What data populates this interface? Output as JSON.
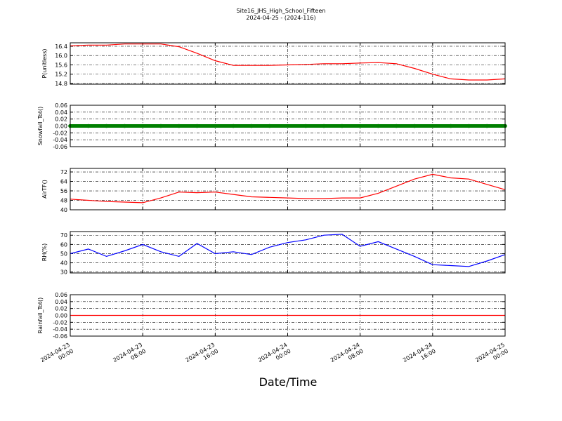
{
  "chart_data": [
    {
      "type": "line",
      "title": "Site16_JHS_High_School_Fifteen",
      "subtitle": "2024-04-25 - (2024-116)",
      "ylabel": "P(unitless)",
      "color": "#ff0000",
      "grid": true,
      "x": [
        "2024-04-23 00:00",
        "2024-04-23 02:00",
        "2024-04-23 04:00",
        "2024-04-23 06:00",
        "2024-04-23 08:00",
        "2024-04-23 10:00",
        "2024-04-23 12:00",
        "2024-04-23 14:00",
        "2024-04-23 16:00",
        "2024-04-23 18:00",
        "2024-04-23 20:00",
        "2024-04-23 22:00",
        "2024-04-24 00:00",
        "2024-04-24 02:00",
        "2024-04-24 04:00",
        "2024-04-24 06:00",
        "2024-04-24 08:00",
        "2024-04-24 10:00",
        "2024-04-24 12:00",
        "2024-04-24 14:00",
        "2024-04-24 16:00",
        "2024-04-24 18:00",
        "2024-04-24 20:00",
        "2024-04-24 22:00",
        "2024-04-25 00:00"
      ],
      "values": [
        16.42,
        16.45,
        16.45,
        16.5,
        16.5,
        16.5,
        16.38,
        16.1,
        15.78,
        15.58,
        15.58,
        15.58,
        15.6,
        15.62,
        15.65,
        15.65,
        15.68,
        15.7,
        15.65,
        15.45,
        15.2,
        15.0,
        14.95,
        14.95,
        15.0
      ],
      "ylim": [
        14.77,
        16.55
      ],
      "yticks": [
        14.8,
        15.2,
        15.6,
        {
          "value": 16.0,
          "label": "16.0"
        },
        16.4
      ]
    },
    {
      "type": "scatter",
      "ylabel": "Snowfall_Tot()",
      "color": "#008000",
      "grid": true,
      "x": [
        "2024-04-23 00:00",
        "2024-04-23 02:00",
        "2024-04-23 04:00",
        "2024-04-23 06:00",
        "2024-04-23 08:00",
        "2024-04-23 10:00",
        "2024-04-23 12:00",
        "2024-04-23 14:00",
        "2024-04-23 16:00",
        "2024-04-23 18:00",
        "2024-04-23 20:00",
        "2024-04-23 22:00",
        "2024-04-24 00:00",
        "2024-04-24 02:00",
        "2024-04-24 04:00",
        "2024-04-24 06:00",
        "2024-04-24 08:00",
        "2024-04-24 10:00",
        "2024-04-24 12:00",
        "2024-04-24 14:00",
        "2024-04-24 16:00",
        "2024-04-24 18:00",
        "2024-04-24 20:00",
        "2024-04-24 22:00",
        "2024-04-25 00:00"
      ],
      "values": [
        0,
        0,
        0,
        0,
        0,
        0,
        0,
        0,
        0,
        0,
        0,
        0,
        0,
        0,
        0,
        0,
        0,
        0,
        0,
        0,
        0,
        0,
        0,
        0,
        0
      ],
      "ylim": [
        -0.06,
        0.06
      ],
      "yticks": [
        -0.06,
        -0.04,
        -0.02,
        {
          "value": 0,
          "label": "0.00"
        },
        0.02,
        0.04,
        0.06
      ]
    },
    {
      "type": "line",
      "ylabel": "AirTF()",
      "color": "#ff0000",
      "grid": true,
      "x": [
        "2024-04-23 00:00",
        "2024-04-23 02:00",
        "2024-04-23 04:00",
        "2024-04-23 06:00",
        "2024-04-23 08:00",
        "2024-04-23 10:00",
        "2024-04-23 12:00",
        "2024-04-23 14:00",
        "2024-04-23 16:00",
        "2024-04-23 18:00",
        "2024-04-23 20:00",
        "2024-04-23 22:00",
        "2024-04-24 00:00",
        "2024-04-24 02:00",
        "2024-04-24 04:00",
        "2024-04-24 06:00",
        "2024-04-24 08:00",
        "2024-04-24 10:00",
        "2024-04-24 12:00",
        "2024-04-24 14:00",
        "2024-04-24 16:00",
        "2024-04-24 18:00",
        "2024-04-24 20:00",
        "2024-04-24 22:00",
        "2024-04-25 00:00"
      ],
      "values": [
        49,
        48,
        47,
        46.5,
        46,
        50,
        55,
        54.5,
        55,
        53,
        51,
        50.5,
        50,
        49.5,
        49.5,
        50,
        50,
        54,
        60,
        66,
        70,
        67,
        66,
        61.5,
        57
      ],
      "ylim": [
        40,
        75
      ],
      "yticks": [
        40,
        48,
        56,
        64,
        72
      ]
    },
    {
      "type": "line",
      "ylabel": "RH(%)",
      "color": "#0000ff",
      "grid": true,
      "x": [
        "2024-04-23 00:00",
        "2024-04-23 02:00",
        "2024-04-23 04:00",
        "2024-04-23 06:00",
        "2024-04-23 08:00",
        "2024-04-23 10:00",
        "2024-04-23 12:00",
        "2024-04-23 14:00",
        "2024-04-23 16:00",
        "2024-04-23 18:00",
        "2024-04-23 20:00",
        "2024-04-23 22:00",
        "2024-04-24 00:00",
        "2024-04-24 02:00",
        "2024-04-24 04:00",
        "2024-04-24 06:00",
        "2024-04-24 08:00",
        "2024-04-24 10:00",
        "2024-04-24 12:00",
        "2024-04-24 14:00",
        "2024-04-24 16:00",
        "2024-04-24 18:00",
        "2024-04-24 20:00",
        "2024-04-24 22:00",
        "2024-04-25 00:00"
      ],
      "values": [
        50,
        55,
        47,
        53,
        60,
        52,
        47,
        61,
        50,
        52,
        49,
        57,
        62,
        65,
        70,
        71,
        58,
        63,
        55,
        47,
        38,
        37,
        36,
        42,
        49
      ],
      "ylim": [
        29,
        74
      ],
      "yticks": [
        30,
        40,
        50,
        60,
        70
      ]
    },
    {
      "type": "line",
      "ylabel": "Rainfall_Tot()",
      "xlabel": "Date/Time",
      "color": "#ff0000",
      "grid": true,
      "x": [
        "2024-04-23 00:00",
        "2024-04-23 02:00",
        "2024-04-23 04:00",
        "2024-04-23 06:00",
        "2024-04-23 08:00",
        "2024-04-23 10:00",
        "2024-04-23 12:00",
        "2024-04-23 14:00",
        "2024-04-23 16:00",
        "2024-04-23 18:00",
        "2024-04-23 20:00",
        "2024-04-23 22:00",
        "2024-04-24 00:00",
        "2024-04-24 02:00",
        "2024-04-24 04:00",
        "2024-04-24 06:00",
        "2024-04-24 08:00",
        "2024-04-24 10:00",
        "2024-04-24 12:00",
        "2024-04-24 14:00",
        "2024-04-24 16:00",
        "2024-04-24 18:00",
        "2024-04-24 20:00",
        "2024-04-24 22:00",
        "2024-04-25 00:00"
      ],
      "values": [
        0,
        0,
        0,
        0,
        0,
        0,
        0,
        0,
        0,
        0,
        0,
        0,
        0,
        0,
        0,
        0,
        0,
        0,
        0,
        0,
        0,
        0,
        0,
        0,
        0
      ],
      "ylim": [
        -0.06,
        0.06
      ],
      "yticks": [
        -0.06,
        -0.04,
        -0.02,
        {
          "value": 0,
          "label": "0.00"
        },
        0.02,
        0.04,
        0.06
      ],
      "xlim": [
        "2024-04-23 00:00",
        "2024-04-25 00:00"
      ],
      "xticks": [
        "2024-04-23 00:00",
        "2024-04-23 08:00",
        "2024-04-23 16:00",
        "2024-04-24 00:00",
        "2024-04-24 08:00",
        "2024-04-24 16:00",
        "2024-04-25 00:00"
      ]
    }
  ]
}
